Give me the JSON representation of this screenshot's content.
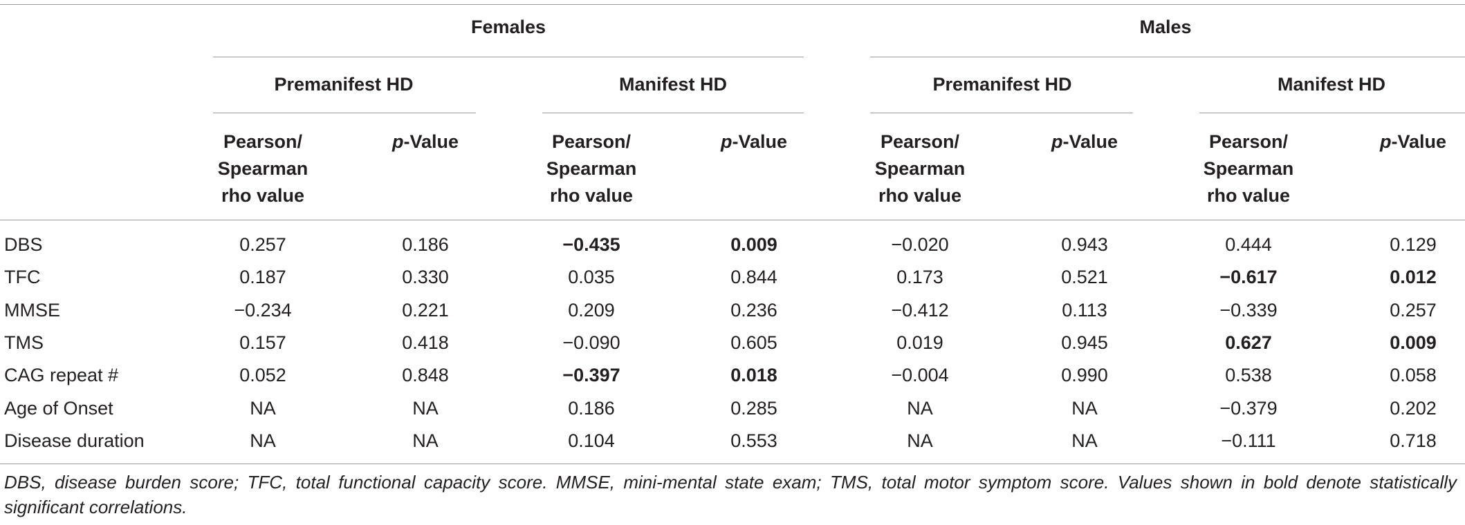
{
  "table": {
    "groups": [
      {
        "name": "Females",
        "subgroups": [
          {
            "name": "Premanifest HD"
          },
          {
            "name": "Manifest HD"
          }
        ]
      },
      {
        "name": "Males",
        "subgroups": [
          {
            "name": "Premanifest HD"
          },
          {
            "name": "Manifest HD"
          }
        ]
      }
    ],
    "col_headers": {
      "rho_line1": "Pearson/",
      "rho_line2": "Spearman",
      "rho_line3": "rho value",
      "p_prefix": "p",
      "p_suffix": "-Value"
    },
    "rows": [
      {
        "label": "DBS",
        "cells": [
          "0.257",
          "0.186",
          "−0.435",
          "0.009",
          "−0.020",
          "0.943",
          "0.444",
          "0.129"
        ],
        "bold": [
          false,
          false,
          true,
          true,
          false,
          false,
          false,
          false
        ]
      },
      {
        "label": "TFC",
        "cells": [
          "0.187",
          "0.330",
          "0.035",
          "0.844",
          "0.173",
          "0.521",
          "−0.617",
          "0.012"
        ],
        "bold": [
          false,
          false,
          false,
          false,
          false,
          false,
          true,
          true
        ]
      },
      {
        "label": "MMSE",
        "cells": [
          "−0.234",
          "0.221",
          "0.209",
          "0.236",
          "−0.412",
          "0.113",
          "−0.339",
          "0.257"
        ],
        "bold": [
          false,
          false,
          false,
          false,
          false,
          false,
          false,
          false
        ]
      },
      {
        "label": "TMS",
        "cells": [
          "0.157",
          "0.418",
          "−0.090",
          "0.605",
          "0.019",
          "0.945",
          "0.627",
          "0.009"
        ],
        "bold": [
          false,
          false,
          false,
          false,
          false,
          false,
          true,
          true
        ]
      },
      {
        "label": "CAG repeat #",
        "cells": [
          "0.052",
          "0.848",
          "−0.397",
          "0.018",
          "−0.004",
          "0.990",
          "0.538",
          "0.058"
        ],
        "bold": [
          false,
          false,
          true,
          true,
          false,
          false,
          false,
          false
        ]
      },
      {
        "label": "Age of Onset",
        "cells": [
          "NA",
          "NA",
          "0.186",
          "0.285",
          "NA",
          "NA",
          "−0.379",
          "0.202"
        ],
        "bold": [
          false,
          false,
          false,
          false,
          false,
          false,
          false,
          false
        ]
      },
      {
        "label": "Disease duration",
        "cells": [
          "NA",
          "NA",
          "0.104",
          "0.553",
          "NA",
          "NA",
          "−0.111",
          "0.718"
        ],
        "bold": [
          false,
          false,
          false,
          false,
          false,
          false,
          false,
          false
        ]
      }
    ],
    "footnote": "DBS, disease burden score; TFC, total functional capacity score. MMSE, mini-mental state exam; TMS, total motor symptom score. Values shown in bold denote statistically significant correlations."
  }
}
